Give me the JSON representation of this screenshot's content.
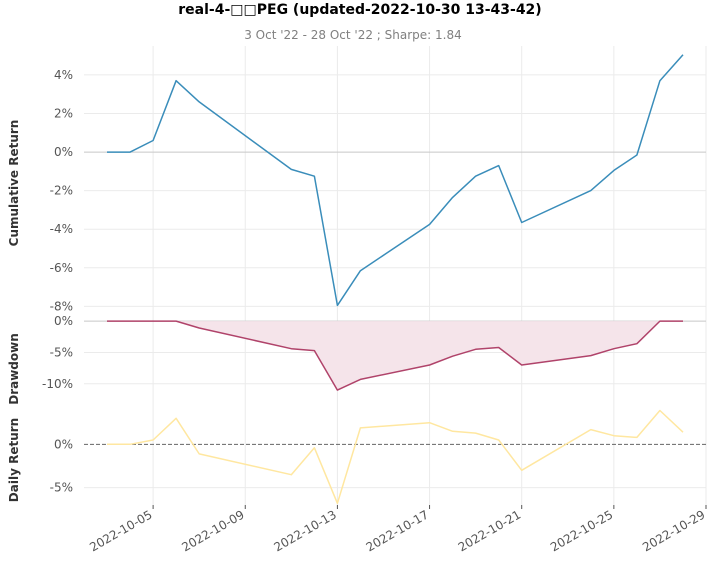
{
  "title": "real-4-□□PEG (updated-2022-10-30 13-43-42)",
  "subtitle": "3 Oct '22 - 28 Oct '22 ;  Sharpe: 1.84",
  "colors": {
    "cumulative": "#3a8dba",
    "drawdown": "#b0436a",
    "drawdown_fill": "#f5e4ea",
    "daily": "#ffe7a0",
    "daily_zero": "#666666"
  },
  "chart_data": [
    {
      "name": "cumulative-return-panel",
      "type": "line",
      "ylabel": "Cumulative Return",
      "ylim": [
        -8.5,
        5.5
      ],
      "yticks": [
        4,
        2,
        0,
        -2,
        -4,
        -6,
        -8
      ],
      "ytick_labels": [
        "4%",
        "2%",
        "0%",
        "-2%",
        "-4%",
        "-6%",
        "-8%"
      ],
      "series": [
        {
          "x": [
            "2022-10-03",
            "2022-10-04",
            "2022-10-05",
            "2022-10-06",
            "2022-10-07",
            "2022-10-11",
            "2022-10-12",
            "2022-10-13",
            "2022-10-14",
            "2022-10-17",
            "2022-10-18",
            "2022-10-19",
            "2022-10-20",
            "2022-10-21",
            "2022-10-24",
            "2022-10-25",
            "2022-10-26",
            "2022-10-27",
            "2022-10-28"
          ],
          "values": [
            0.0,
            0.0,
            0.6,
            3.7,
            2.6,
            -0.9,
            -1.25,
            -7.95,
            -6.15,
            -3.75,
            -2.35,
            -1.25,
            -0.7,
            -3.65,
            -2.0,
            -0.95,
            -0.15,
            3.7,
            5.05
          ]
        }
      ]
    },
    {
      "name": "drawdown-panel",
      "type": "area",
      "ylabel": "Drawdown",
      "ylim": [
        -14.5,
        0.5
      ],
      "yticks": [
        0,
        -5,
        -10
      ],
      "ytick_labels": [
        "0%",
        "-5%",
        "-10%"
      ],
      "series": [
        {
          "x": [
            "2022-10-03",
            "2022-10-04",
            "2022-10-05",
            "2022-10-06",
            "2022-10-07",
            "2022-10-11",
            "2022-10-12",
            "2022-10-13",
            "2022-10-14",
            "2022-10-17",
            "2022-10-18",
            "2022-10-19",
            "2022-10-20",
            "2022-10-21",
            "2022-10-24",
            "2022-10-25",
            "2022-10-26",
            "2022-10-27",
            "2022-10-28"
          ],
          "values": [
            0.0,
            0.0,
            0.0,
            0.0,
            -1.1,
            -4.4,
            -4.7,
            -11.0,
            -9.3,
            -7.0,
            -5.6,
            -4.5,
            -4.2,
            -7.0,
            -5.5,
            -4.4,
            -3.6,
            0.0,
            0.0
          ]
        }
      ]
    },
    {
      "name": "daily-return-panel",
      "type": "line",
      "ylabel": "Daily Return",
      "ylim": [
        -7,
        3.5
      ],
      "yticks": [
        0,
        -5
      ],
      "ytick_labels": [
        "0%",
        "-5%"
      ],
      "series": [
        {
          "x": [
            "2022-10-03",
            "2022-10-04",
            "2022-10-05",
            "2022-10-06",
            "2022-10-07",
            "2022-10-11",
            "2022-10-12",
            "2022-10-13",
            "2022-10-14",
            "2022-10-17",
            "2022-10-18",
            "2022-10-19",
            "2022-10-20",
            "2022-10-21",
            "2022-10-24",
            "2022-10-25",
            "2022-10-26",
            "2022-10-27",
            "2022-10-28"
          ],
          "values": [
            0.0,
            0.0,
            0.5,
            3.0,
            -1.1,
            -3.5,
            -0.4,
            -6.8,
            1.9,
            2.5,
            1.5,
            1.3,
            0.5,
            -3.0,
            1.7,
            1.0,
            0.8,
            3.9,
            1.4
          ]
        }
      ]
    }
  ],
  "x_axis": {
    "type": "date",
    "range": [
      "2022-10-02",
      "2022-10-29"
    ],
    "ticks": [
      "2022-10-05",
      "2022-10-09",
      "2022-10-13",
      "2022-10-17",
      "2022-10-21",
      "2022-10-25",
      "2022-10-29"
    ],
    "tick_labels": [
      "2022-10-05",
      "2022-10-09",
      "2022-10-13",
      "2022-10-17",
      "2022-10-21",
      "2022-10-25",
      "2022-10-29"
    ]
  }
}
